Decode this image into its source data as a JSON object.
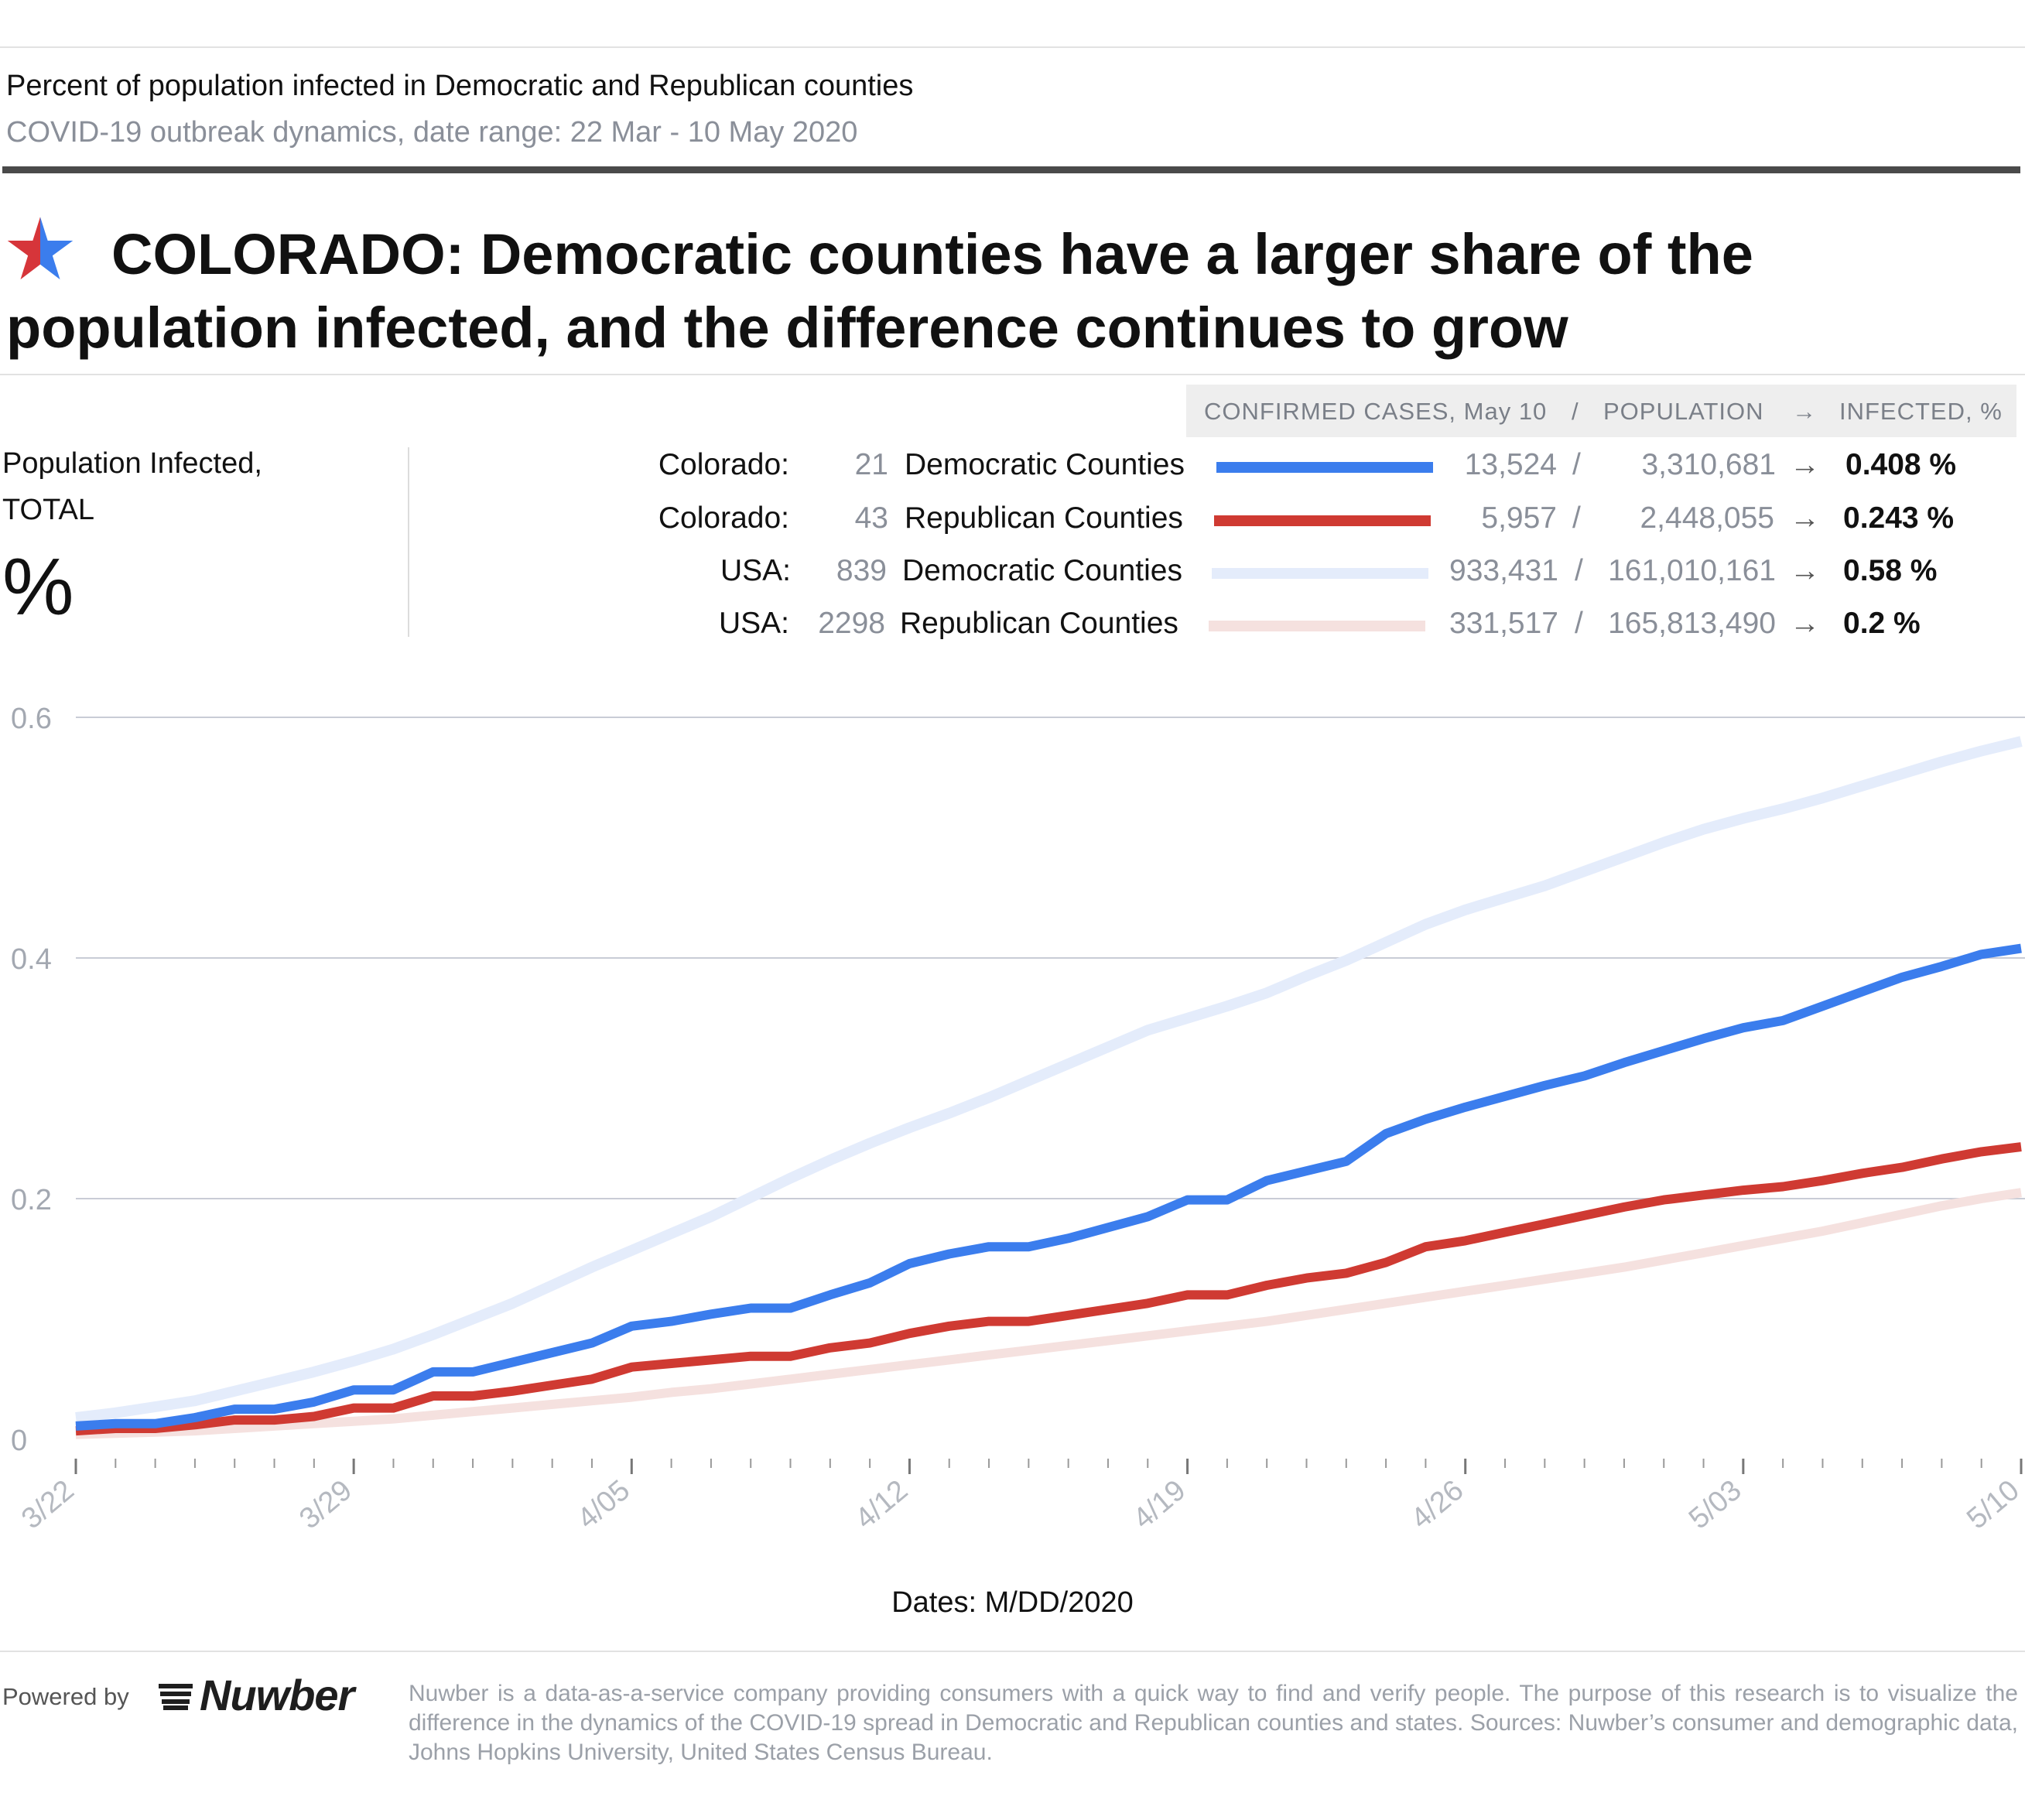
{
  "header": {
    "subtitle": "Percent of population infected in Democratic and Republican counties",
    "date_range": "COVID-19 outbreak dynamics, date range: 22 Mar - 10 May 2020",
    "headline": "COLORADO: Democratic counties have a larger share of the population infected, and the difference continues to grow",
    "star_icon": "star-icon"
  },
  "legend_header": {
    "cases": "CONFIRMED CASES, May 10",
    "slash": "/",
    "population": "POPULATION",
    "arrow": "→",
    "infected": "INFECTED, %"
  },
  "left_block": {
    "label_line1": "Population Infected,",
    "label_line2": "TOTAL",
    "unit": "%"
  },
  "legend_rows": [
    {
      "region": "Colorado:",
      "count": "21",
      "name": "Democratic Counties",
      "cases": "13,524",
      "slash": "/",
      "population": "3,310,681",
      "arrow": "→",
      "value": "0.408 %",
      "color": "#3b7ded"
    },
    {
      "region": "Colorado:",
      "count": "43",
      "name": "Republican Counties",
      "cases": "5,957",
      "slash": "/",
      "population": "2,448,055",
      "arrow": "→",
      "value": "0.243 %",
      "color": "#cf3a32"
    },
    {
      "region": "USA:",
      "count": "839",
      "name": "Democratic Counties",
      "cases": "933,431",
      "slash": "/",
      "population": "161,010,161",
      "arrow": "→",
      "value": "0.58 %",
      "color": "#e4ecfb"
    },
    {
      "region": "USA:",
      "count": "2298",
      "name": "Republican Counties",
      "cases": "331,517",
      "slash": "/",
      "population": "165,813,490",
      "arrow": "→",
      "value": "0.2 %",
      "color": "#f5e1df"
    }
  ],
  "chart_data": {
    "type": "line",
    "x": [
      "3/22",
      "3/23",
      "3/24",
      "3/25",
      "3/26",
      "3/27",
      "3/28",
      "3/29",
      "3/30",
      "3/31",
      "4/01",
      "4/02",
      "4/03",
      "4/04",
      "4/05",
      "4/06",
      "4/07",
      "4/08",
      "4/09",
      "4/10",
      "4/11",
      "4/12",
      "4/13",
      "4/14",
      "4/15",
      "4/16",
      "4/17",
      "4/18",
      "4/19",
      "4/20",
      "4/21",
      "4/22",
      "4/23",
      "4/24",
      "4/25",
      "4/26",
      "4/27",
      "4/28",
      "4/29",
      "4/30",
      "5/01",
      "5/02",
      "5/03",
      "5/04",
      "5/05",
      "5/06",
      "5/07",
      "5/08",
      "5/09",
      "5/10"
    ],
    "x_tick_labels": [
      "3/22",
      "3/29",
      "4/05",
      "4/12",
      "4/19",
      "4/26",
      "5/03",
      "5/10"
    ],
    "xlabel": "Dates: M/DD/2020",
    "ylim": [
      0,
      0.6
    ],
    "y_ticks": [
      0,
      0.2,
      0.4,
      0.6
    ],
    "y_tick_labels": [
      "0",
      "0.2",
      "0.4",
      "0.6"
    ],
    "grid": true,
    "series": [
      {
        "name": "USA: Democratic Counties",
        "color": "#e4ecfb",
        "values": [
          0.018,
          0.022,
          0.027,
          0.032,
          0.04,
          0.048,
          0.056,
          0.065,
          0.075,
          0.087,
          0.1,
          0.113,
          0.128,
          0.143,
          0.157,
          0.171,
          0.185,
          0.201,
          0.217,
          0.232,
          0.246,
          0.259,
          0.271,
          0.284,
          0.298,
          0.312,
          0.326,
          0.34,
          0.35,
          0.36,
          0.371,
          0.385,
          0.398,
          0.413,
          0.428,
          0.44,
          0.45,
          0.46,
          0.472,
          0.484,
          0.496,
          0.507,
          0.516,
          0.524,
          0.533,
          0.543,
          0.553,
          0.563,
          0.572,
          0.58
        ]
      },
      {
        "name": "USA: Republican Counties",
        "color": "#f5e1df",
        "values": [
          0.004,
          0.005,
          0.006,
          0.007,
          0.009,
          0.011,
          0.013,
          0.015,
          0.017,
          0.02,
          0.023,
          0.026,
          0.029,
          0.032,
          0.035,
          0.039,
          0.042,
          0.046,
          0.05,
          0.054,
          0.058,
          0.062,
          0.066,
          0.07,
          0.074,
          0.078,
          0.082,
          0.086,
          0.09,
          0.094,
          0.098,
          0.103,
          0.108,
          0.113,
          0.118,
          0.123,
          0.128,
          0.133,
          0.138,
          0.143,
          0.149,
          0.155,
          0.161,
          0.167,
          0.173,
          0.18,
          0.187,
          0.194,
          0.2,
          0.205
        ]
      },
      {
        "name": "Colorado: Republican Counties",
        "color": "#cf3a32",
        "values": [
          0.007,
          0.009,
          0.009,
          0.012,
          0.016,
          0.016,
          0.019,
          0.026,
          0.026,
          0.036,
          0.036,
          0.04,
          0.045,
          0.05,
          0.06,
          0.063,
          0.066,
          0.069,
          0.069,
          0.076,
          0.08,
          0.088,
          0.094,
          0.098,
          0.098,
          0.103,
          0.108,
          0.113,
          0.12,
          0.12,
          0.128,
          0.134,
          0.138,
          0.147,
          0.16,
          0.165,
          0.172,
          0.179,
          0.186,
          0.193,
          0.199,
          0.203,
          0.207,
          0.21,
          0.215,
          0.221,
          0.226,
          0.233,
          0.239,
          0.243
        ]
      },
      {
        "name": "Colorado: Democratic Counties",
        "color": "#3b7ded",
        "values": [
          0.011,
          0.013,
          0.013,
          0.018,
          0.025,
          0.025,
          0.031,
          0.041,
          0.041,
          0.056,
          0.056,
          0.064,
          0.072,
          0.08,
          0.094,
          0.098,
          0.104,
          0.109,
          0.109,
          0.12,
          0.13,
          0.146,
          0.154,
          0.16,
          0.16,
          0.167,
          0.176,
          0.185,
          0.199,
          0.199,
          0.215,
          0.223,
          0.231,
          0.254,
          0.266,
          0.276,
          0.285,
          0.294,
          0.302,
          0.313,
          0.323,
          0.333,
          0.342,
          0.348,
          0.36,
          0.372,
          0.384,
          0.393,
          0.403,
          0.408
        ]
      }
    ]
  },
  "footer": {
    "powered_by": "Powered by",
    "logo_text": "Nuwber",
    "note": "Nuwber is a data-as-a-service company providing consumers with a quick way to find and verify people. The purpose of this research is to visualize the difference in the dynamics of the COVID-19 spread in Democratic and Republican counties and states. Sources: Nuwber’s consumer and demographic data, Johns Hopkins University, United States Census Bureau."
  }
}
